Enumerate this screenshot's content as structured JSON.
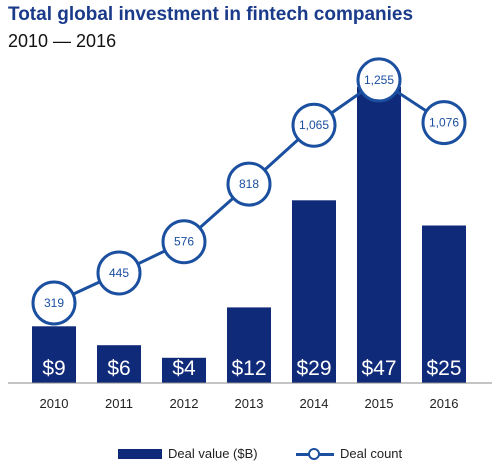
{
  "title": "Total global investment in fintech companies",
  "subtitle": "2010 — 2016",
  "colors": {
    "bar": "#102a7a",
    "line": "#1b4fa0",
    "circle_fill": "#ffffff",
    "circle_text": "#1b4fa0",
    "bar_label": "#ffffff",
    "title": "#1a3a8a"
  },
  "legend": {
    "bar_label": "Deal value ($B)",
    "line_label": "Deal count"
  },
  "chart_data": {
    "type": "bar",
    "title": "Total global investment in fintech companies",
    "subtitle": "2010 — 2016",
    "categories": [
      "2010",
      "2011",
      "2012",
      "2013",
      "2014",
      "2015",
      "2016"
    ],
    "series": [
      {
        "name": "Deal value ($B)",
        "type": "bar",
        "values": [
          9,
          6,
          4,
          12,
          29,
          47,
          25
        ],
        "labels": [
          "$9",
          "$6",
          "$4",
          "$12",
          "$29",
          "$47",
          "$25"
        ]
      },
      {
        "name": "Deal count",
        "type": "line",
        "values": [
          319,
          445,
          576,
          818,
          1065,
          1255,
          1076
        ],
        "labels": [
          "319",
          "445",
          "576",
          "818",
          "1,065",
          "1,255",
          "1,076"
        ]
      }
    ],
    "xlabel": "",
    "ylabel": "",
    "grid": false,
    "legend_position": "bottom"
  }
}
